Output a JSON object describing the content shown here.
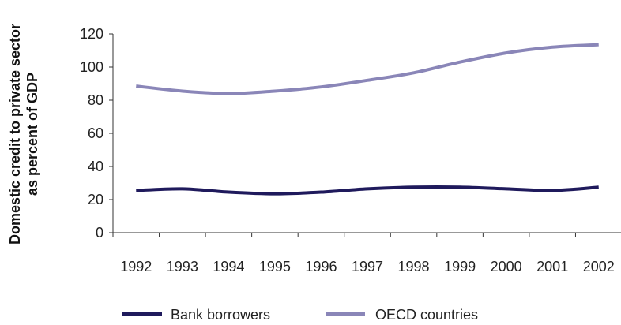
{
  "chart_data": {
    "type": "line",
    "ylabel_lines": [
      "Domestic credit to private sector",
      "as percent of GDP"
    ],
    "categories": [
      "1992",
      "1993",
      "1994",
      "1995",
      "1996",
      "1997",
      "1998",
      "1999",
      "2000",
      "2001",
      "2002"
    ],
    "ylim": [
      0,
      120
    ],
    "yticks": [
      "0",
      "20",
      "40",
      "60",
      "80",
      "100",
      "120"
    ],
    "grid": false,
    "legend_position": "bottom",
    "series": [
      {
        "name": "Bank borrowers",
        "color": "#1f1a5c",
        "values": [
          25.5,
          26.5,
          24.5,
          23.5,
          24.5,
          26.5,
          27.5,
          27.5,
          26.5,
          25.5,
          27.5
        ]
      },
      {
        "name": "OECD countries",
        "color": "#8a86b8",
        "values": [
          88.5,
          85.5,
          84,
          85.5,
          88,
          92,
          96.5,
          103,
          108.5,
          112,
          113.5
        ]
      }
    ]
  }
}
